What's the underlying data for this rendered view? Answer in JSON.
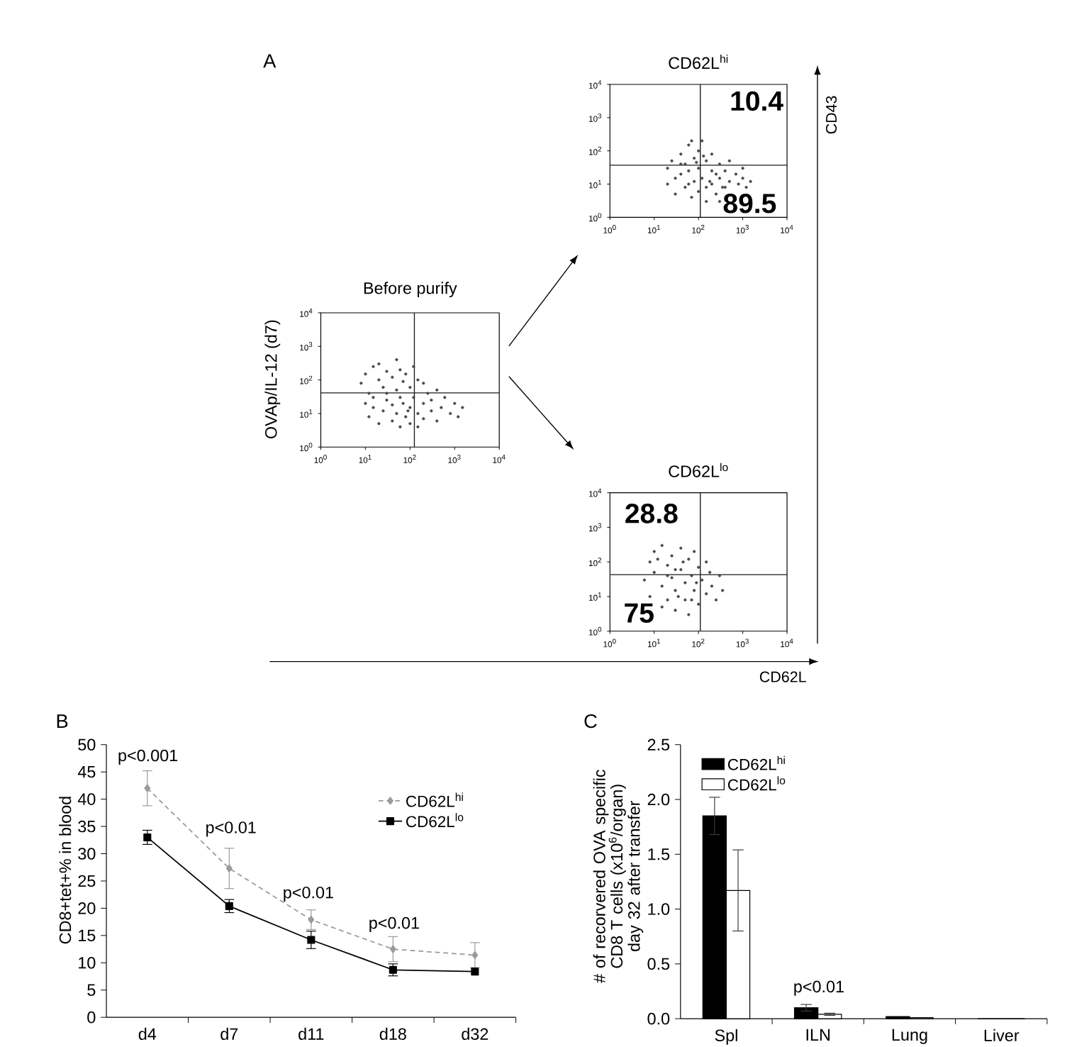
{
  "chart_data": [
    {
      "type": "scatter",
      "title": "CD62L$^{hi}$",
      "x": [
        20,
        20,
        25,
        30,
        30,
        40,
        40,
        50,
        50,
        60,
        60,
        70,
        80,
        80,
        100,
        100,
        100,
        120,
        120,
        150,
        150,
        150,
        200,
        200,
        200,
        250,
        300,
        300,
        300,
        400,
        400,
        500,
        700,
        800,
        1000,
        1200,
        1500,
        180,
        250,
        350,
        60,
        40,
        90,
        130,
        1000,
        500,
        70
      ],
      "values": [
        10,
        30,
        50,
        15,
        5,
        80,
        20,
        8,
        40,
        150,
        25,
        4,
        60,
        12,
        100,
        30,
        6,
        200,
        15,
        50,
        8,
        3,
        25,
        80,
        10,
        5,
        15,
        40,
        3,
        8,
        25,
        12,
        20,
        10,
        15,
        8,
        12,
        12,
        20,
        8,
        10,
        40,
        45,
        70,
        30,
        50,
        200
      ],
      "color": "#4a4a4a",
      "log": "xy",
      "xlim": [
        1,
        10000
      ],
      "ylim": [
        1,
        10000
      ],
      "xticks": [
        {
          "value": 1,
          "label": "10$^{0}$"
        },
        {
          "value": 10,
          "label": "10$^{1}$"
        },
        {
          "value": 100,
          "label": "10$^{2}$"
        },
        {
          "value": 1000,
          "label": "10$^{3}$"
        },
        {
          "value": 10000,
          "label": "10$^{4}$"
        }
      ],
      "yticks": [
        {
          "value": 1,
          "label": "10$^{0}$"
        },
        {
          "value": 10,
          "label": "10$^{1}$"
        },
        {
          "value": 100,
          "label": "10$^{2}$"
        },
        {
          "value": 1000,
          "label": "10$^{3}$"
        },
        {
          "value": 10000,
          "label": "10$^{4}$"
        }
      ],
      "ref_lines": [
        {
          "axis": "x",
          "value": 110,
          "color": "#1a1a1a"
        },
        {
          "axis": "y",
          "value": 37,
          "color": "#1a1a1a"
        }
      ],
      "annotations": [
        "A",
        "10.4",
        "89.5",
        "CD43"
      ]
    },
    {
      "type": "scatter",
      "title": "Before purify",
      "ylabel": "OVAp/IL-12 (d7)",
      "x": [
        8,
        10,
        12,
        15,
        20,
        20,
        25,
        30,
        40,
        50,
        50,
        60,
        70,
        80,
        100,
        120,
        150,
        200,
        15,
        30,
        10,
        12,
        15,
        20,
        25,
        30,
        40,
        40,
        50,
        60,
        70,
        80,
        100,
        100,
        120,
        150,
        150,
        200,
        200,
        300,
        300,
        400,
        500,
        600,
        800,
        1000,
        1200,
        1500,
        250,
        400,
        60,
        90
      ],
      "values": [
        80,
        150,
        40,
        250,
        100,
        300,
        60,
        180,
        120,
        400,
        50,
        200,
        90,
        150,
        60,
        250,
        100,
        80,
        30,
        40,
        20,
        8,
        15,
        5,
        12,
        25,
        6,
        18,
        10,
        4,
        20,
        8,
        15,
        5,
        30,
        10,
        4,
        20,
        7,
        12,
        25,
        6,
        15,
        30,
        10,
        20,
        8,
        15,
        40,
        50,
        30,
        12
      ],
      "color": "#4a4a4a",
      "log": "xy",
      "xlim": [
        1,
        10000
      ],
      "ylim": [
        1,
        10000
      ],
      "xticks": [
        {
          "value": 1,
          "label": "10$^{0}$"
        },
        {
          "value": 10,
          "label": "10$^{1}$"
        },
        {
          "value": 100,
          "label": "10$^{2}$"
        },
        {
          "value": 1000,
          "label": "10$^{3}$"
        },
        {
          "value": 10000,
          "label": "10$^{4}$"
        }
      ],
      "yticks": [
        {
          "value": 1,
          "label": "10$^{0}$"
        },
        {
          "value": 10,
          "label": "10$^{1}$"
        },
        {
          "value": 100,
          "label": "10$^{2}$"
        },
        {
          "value": 1000,
          "label": "10$^{3}$"
        },
        {
          "value": 10000,
          "label": "10$^{4}$"
        }
      ],
      "ref_lines": [
        {
          "axis": "x",
          "value": 125,
          "color": "#1a1a1a"
        },
        {
          "axis": "y",
          "value": 41,
          "color": "#1a1a1a"
        }
      ]
    },
    {
      "type": "scatter",
      "title": "CD62L$^{lo}$",
      "x": [
        6,
        8,
        8,
        10,
        10,
        15,
        15,
        15,
        20,
        20,
        25,
        25,
        30,
        30,
        40,
        40,
        50,
        50,
        60,
        60,
        70,
        80,
        80,
        100,
        100,
        120,
        150,
        150,
        200,
        250,
        300,
        350,
        20,
        35,
        45,
        90,
        70,
        12,
        180,
        30
      ],
      "values": [
        30,
        100,
        10,
        200,
        50,
        5,
        20,
        300,
        80,
        8,
        150,
        35,
        4,
        15,
        60,
        250,
        25,
        8,
        120,
        3,
        40,
        15,
        200,
        70,
        6,
        30,
        12,
        100,
        20,
        8,
        40,
        15,
        40,
        10,
        100,
        25,
        8,
        120,
        50,
        60
      ],
      "color": "#4a4a4a",
      "log": "xy",
      "xlim": [
        1,
        10000
      ],
      "ylim": [
        1,
        10000
      ],
      "xticks": [
        {
          "value": 1,
          "label": "10$^{0}$"
        },
        {
          "value": 10,
          "label": "10$^{1}$"
        },
        {
          "value": 100,
          "label": "10$^{2}$"
        },
        {
          "value": 1000,
          "label": "10$^{3}$"
        },
        {
          "value": 10000,
          "label": "10$^{4}$"
        }
      ],
      "yticks": [
        {
          "value": 1,
          "label": "10$^{0}$"
        },
        {
          "value": 10,
          "label": "10$^{1}$"
        },
        {
          "value": 100,
          "label": "10$^{2}$"
        },
        {
          "value": 1000,
          "label": "10$^{3}$"
        },
        {
          "value": 10000,
          "label": "10$^{4}$"
        }
      ],
      "ref_lines": [
        {
          "axis": "x",
          "value": 110,
          "color": "#1a1a1a"
        },
        {
          "axis": "y",
          "value": 43,
          "color": "#1a1a1a"
        }
      ],
      "annotations": [
        "28.8",
        "75",
        "CD62L"
      ]
    },
    {
      "type": "line",
      "categories": [
        "d4",
        "d7",
        "d11",
        "d18",
        "d32"
      ],
      "ylabel": "CD8+tet+% in blood",
      "ylim": [
        0,
        50
      ],
      "yticks": [
        0,
        5,
        10,
        15,
        20,
        25,
        30,
        35,
        40,
        45,
        50
      ],
      "legend": "top right",
      "series": [
        {
          "name": "CD62L$^{hi}$",
          "color": "#9a9a9a",
          "marker": "diamond",
          "line_style": "dashed",
          "values": [
            42,
            27.3,
            17.9,
            12.5,
            11.4
          ],
          "errors": [
            3.2,
            3.7,
            1.8,
            2.3,
            2.3
          ]
        },
        {
          "name": "CD62L$^{lo}$",
          "color": "#000000",
          "marker": "square",
          "line_style": "solid",
          "values": [
            33,
            20.4,
            14.2,
            8.7,
            8.4
          ],
          "errors": [
            1.3,
            1.2,
            1.6,
            1.1,
            null
          ]
        }
      ],
      "annotations": [
        "B",
        "p<0.001",
        "p<0.01",
        "p<0.01",
        "p<0.01"
      ]
    },
    {
      "type": "bar",
      "categories": [
        "Spl",
        "ILN",
        "Lung",
        "Liver"
      ],
      "ylabel": "# of recorvered OVA specific CD8 T cells (x10$^{6}$/organ) day 32 after transfer",
      "ylim": [
        0,
        2.5
      ],
      "yticks": [
        {
          "value": 0,
          "label": "0.0"
        },
        0.5,
        {
          "value": 1,
          "label": "1.0"
        },
        1.5,
        {
          "value": 2,
          "label": "2.0"
        },
        2.5
      ],
      "legend": "top left",
      "series": [
        {
          "name": "CD62L$^{hi}$",
          "color": "#000000",
          "values": [
            1.85,
            0.1,
            0.02,
            0
          ],
          "errors": [
            0.17,
            0.03,
            null,
            null
          ]
        },
        {
          "name": "CD62L$^{lo}$",
          "color": "#ffffff",
          "values": [
            1.17,
            0.04,
            0.01,
            0
          ],
          "errors": [
            0.37,
            0.01,
            null,
            null
          ]
        }
      ],
      "annotations": [
        "C",
        "p<0.01"
      ]
    }
  ]
}
